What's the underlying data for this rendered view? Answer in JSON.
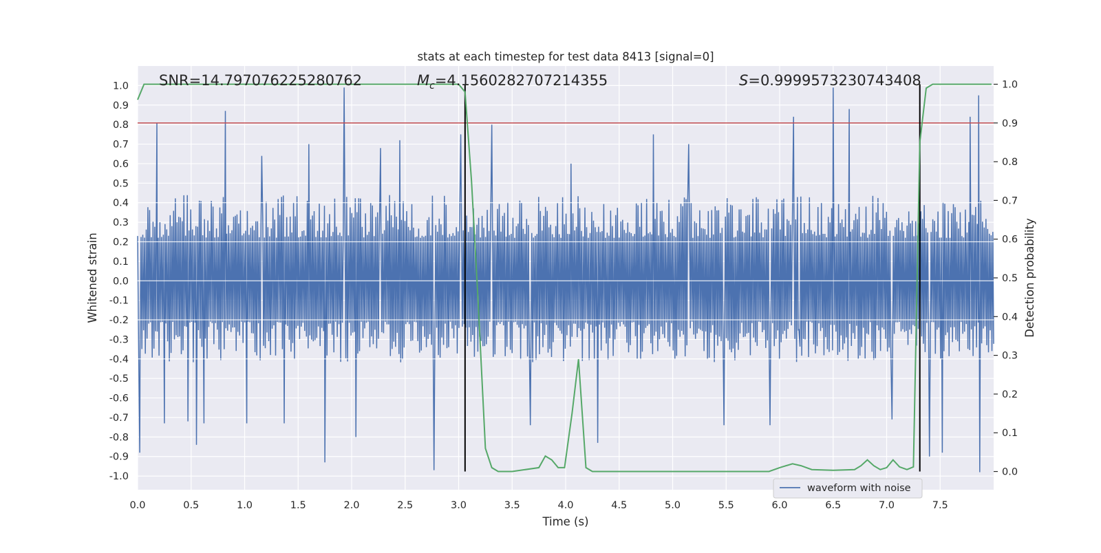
{
  "chart_data": {
    "type": "line",
    "title": "stats at each timestep for test data 8413 [signal=0]",
    "xlabel": "Time (s)",
    "ylabel_left": "Whitened strain",
    "ylabel_right": "Detection probability",
    "xlim": [
      0.0,
      8.0
    ],
    "ylim_left": [
      -1.07,
      1.1
    ],
    "ylim_right": [
      -0.047,
      1.047
    ],
    "x_ticks": [
      "0.0",
      "0.5",
      "1.0",
      "1.5",
      "2.0",
      "2.5",
      "3.0",
      "3.5",
      "4.0",
      "4.5",
      "5.0",
      "5.5",
      "6.0",
      "6.5",
      "7.0",
      "7.5"
    ],
    "x_tick_values": [
      0.0,
      0.5,
      1.0,
      1.5,
      2.0,
      2.5,
      3.0,
      3.5,
      4.0,
      4.5,
      5.0,
      5.5,
      6.0,
      6.5,
      7.0,
      7.5
    ],
    "y_left_ticks": [
      "1.0",
      "0.9",
      "0.8",
      "0.7",
      "0.6",
      "0.5",
      "0.4",
      "0.3",
      "0.2",
      "0.1",
      "0.0",
      "-0.1",
      "-0.2",
      "-0.3",
      "-0.4",
      "-0.5",
      "-0.6",
      "-0.7",
      "-0.8",
      "-0.9",
      "-1.0"
    ],
    "y_left_tick_values": [
      1.0,
      0.9,
      0.8,
      0.7,
      0.6,
      0.5,
      0.4,
      0.3,
      0.2,
      0.1,
      0.0,
      -0.1,
      -0.2,
      -0.3,
      -0.4,
      -0.5,
      -0.6,
      -0.7,
      -0.8,
      -0.9,
      -1.0
    ],
    "y_right_ticks": [
      "1.0",
      "0.9",
      "0.8",
      "0.7",
      "0.6",
      "0.5",
      "0.4",
      "0.3",
      "0.2",
      "0.1",
      "0.0"
    ],
    "y_right_tick_values": [
      1.0,
      0.9,
      0.8,
      0.7,
      0.6,
      0.5,
      0.4,
      0.3,
      0.2,
      0.1,
      0.0
    ],
    "annotations": {
      "snr": "SNR=14.797076225280762",
      "mc_symbol": "M",
      "mc_subscript": "c",
      "mc_value": "=4.1560282707214355",
      "s_symbol": "S",
      "s_value": "=0.9999573230743408"
    },
    "threshold": {
      "axis": "right",
      "value": 0.9,
      "color": "#c44e52"
    },
    "vertical_lines": [
      3.06,
      7.31
    ],
    "legend": {
      "label": "waveform with noise",
      "position": "lower-right"
    },
    "colors": {
      "waveform": "#4c72b0",
      "probability": "#55a868",
      "threshold": "#c44e52",
      "vline": "#000000",
      "plot_background": "#eaeaf2",
      "grid": "#ffffff"
    },
    "waveform": {
      "name": "waveform with noise",
      "duration": 8.0,
      "samples": 1000,
      "typical_envelope": [
        -0.38,
        0.4
      ],
      "spikes": [
        {
          "x": 0.02,
          "y": -0.88
        },
        {
          "x": 0.18,
          "y": 0.81
        },
        {
          "x": 0.25,
          "y": -0.73
        },
        {
          "x": 0.47,
          "y": -0.72
        },
        {
          "x": 0.55,
          "y": -0.84
        },
        {
          "x": 0.62,
          "y": -0.73
        },
        {
          "x": 0.82,
          "y": 0.87
        },
        {
          "x": 1.02,
          "y": -0.73
        },
        {
          "x": 1.16,
          "y": 0.64
        },
        {
          "x": 1.37,
          "y": -0.73
        },
        {
          "x": 1.6,
          "y": 0.7
        },
        {
          "x": 1.75,
          "y": -0.93
        },
        {
          "x": 1.93,
          "y": 0.99
        },
        {
          "x": 2.04,
          "y": -0.8
        },
        {
          "x": 2.27,
          "y": 0.68
        },
        {
          "x": 2.45,
          "y": 0.72
        },
        {
          "x": 2.77,
          "y": -0.97
        },
        {
          "x": 3.02,
          "y": 0.75
        },
        {
          "x": 3.31,
          "y": 0.8
        },
        {
          "x": 3.67,
          "y": -0.74
        },
        {
          "x": 4.05,
          "y": 0.6
        },
        {
          "x": 4.3,
          "y": -0.83
        },
        {
          "x": 4.82,
          "y": 0.75
        },
        {
          "x": 5.15,
          "y": 0.7
        },
        {
          "x": 5.48,
          "y": -0.74
        },
        {
          "x": 5.91,
          "y": -0.74
        },
        {
          "x": 6.13,
          "y": 0.84
        },
        {
          "x": 6.18,
          "y": -0.25
        },
        {
          "x": 6.5,
          "y": 0.99
        },
        {
          "x": 6.65,
          "y": 0.88
        },
        {
          "x": 7.05,
          "y": -0.71
        },
        {
          "x": 7.4,
          "y": -0.9
        },
        {
          "x": 7.52,
          "y": -0.88
        },
        {
          "x": 7.78,
          "y": 0.84
        },
        {
          "x": 7.86,
          "y": 0.95
        },
        {
          "x": 7.87,
          "y": -0.98
        }
      ]
    },
    "probability": {
      "name": "detection probability",
      "x": [
        0.0,
        0.06,
        0.12,
        0.5,
        1.0,
        1.5,
        2.0,
        2.5,
        2.95,
        3.0,
        3.06,
        3.12,
        3.18,
        3.25,
        3.31,
        3.37,
        3.5,
        3.75,
        3.81,
        3.87,
        3.93,
        3.99,
        4.06,
        4.12,
        4.19,
        4.25,
        4.31,
        4.5,
        5.0,
        5.5,
        5.9,
        6.0,
        6.12,
        6.2,
        6.3,
        6.5,
        6.7,
        6.76,
        6.82,
        6.88,
        6.94,
        7.0,
        7.06,
        7.12,
        7.19,
        7.25,
        7.31,
        7.37,
        7.43,
        7.5,
        7.6,
        7.98
      ],
      "y": [
        0.96,
        1.0,
        1.0,
        1.0,
        1.0,
        1.0,
        1.0,
        1.0,
        1.0,
        1.0,
        0.98,
        0.75,
        0.45,
        0.06,
        0.01,
        0.0,
        0.0,
        0.01,
        0.04,
        0.03,
        0.01,
        0.01,
        0.15,
        0.29,
        0.01,
        0.0,
        0.0,
        0.0,
        0.0,
        0.0,
        0.0,
        0.01,
        0.02,
        0.015,
        0.005,
        0.003,
        0.005,
        0.015,
        0.03,
        0.015,
        0.005,
        0.01,
        0.03,
        0.012,
        0.005,
        0.012,
        0.85,
        0.99,
        1.0,
        1.0,
        1.0,
        1.0
      ]
    }
  }
}
